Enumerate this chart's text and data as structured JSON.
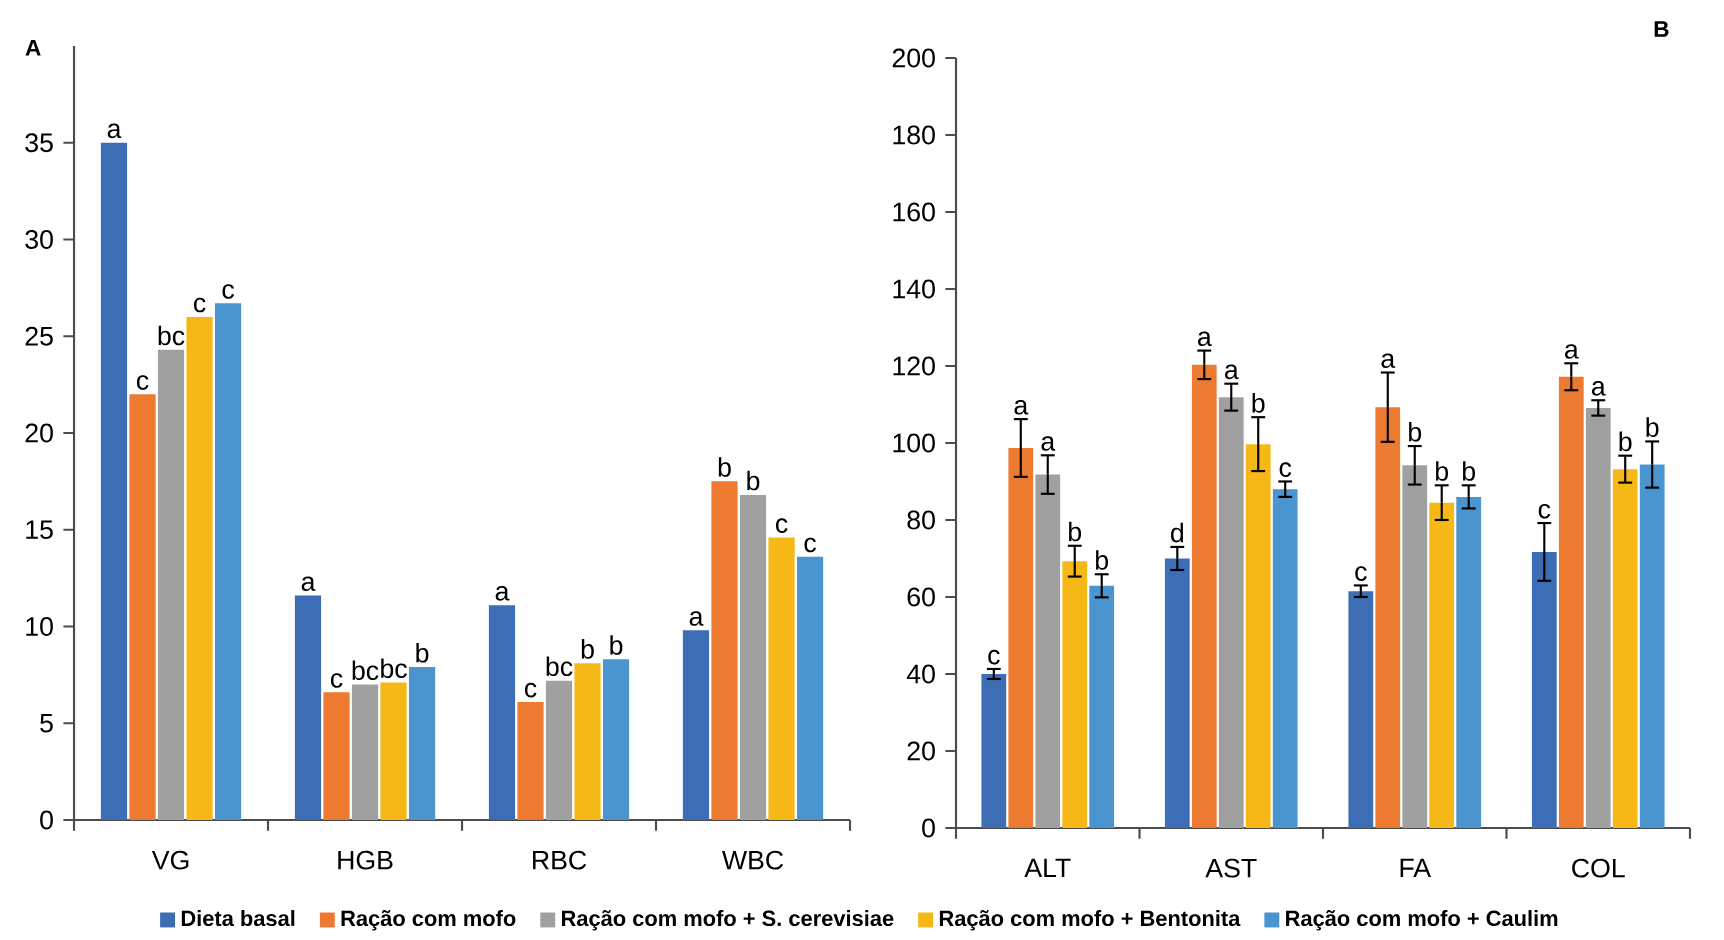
{
  "chart_data": [
    {
      "type": "bar",
      "annotations": [
        "A"
      ],
      "categories": [
        "VG",
        "HGB",
        "RBC",
        "WBC"
      ],
      "ylim": [
        0,
        40
      ],
      "yticks": [
        0,
        5,
        10,
        15,
        20,
        25,
        30,
        35
      ],
      "legend": "bottom",
      "series": [
        {
          "name": "Dieta basal",
          "color": "#3d6db5",
          "values": [
            35,
            11.6,
            11.1,
            9.8
          ],
          "value_labels": [
            "a",
            "a",
            "a",
            "a"
          ]
        },
        {
          "name": "Ração com mofo",
          "color": "#ec7a30",
          "values": [
            22,
            6.6,
            6.1,
            17.5
          ],
          "value_labels": [
            "c",
            "c",
            "c",
            "b"
          ]
        },
        {
          "name": "Ração com mofo + S. cerevisiae",
          "color": "#a0a0a0",
          "values": [
            24.3,
            7.0,
            7.2,
            16.8
          ],
          "value_labels": [
            "bc",
            "bc",
            "bc",
            "b"
          ]
        },
        {
          "name": "Ração com mofo + Bentonita",
          "color": "#f6b817",
          "values": [
            26,
            7.1,
            8.1,
            14.6
          ],
          "value_labels": [
            "c",
            "bc",
            "b",
            "c"
          ]
        },
        {
          "name": "Ração com mofo + Caulim",
          "color": "#4a95d0",
          "values": [
            26.7,
            7.9,
            8.3,
            13.6
          ],
          "value_labels": [
            "c",
            "b",
            "b",
            "c"
          ]
        }
      ]
    },
    {
      "type": "bar",
      "annotations": [
        "B"
      ],
      "categories": [
        "ALT",
        "AST",
        "FA",
        "COL"
      ],
      "ylim": [
        0,
        200
      ],
      "yticks": [
        0,
        20,
        40,
        60,
        80,
        100,
        120,
        140,
        160,
        180,
        200
      ],
      "series": [
        {
          "color": "#3d6db5",
          "values": [
            40,
            70,
            61.5,
            71.7
          ],
          "errors": [
            1.3,
            3,
            1.5,
            7.5
          ],
          "value_labels": [
            "c",
            "d",
            "c",
            "c"
          ]
        },
        {
          "color": "#ec7a30",
          "values": [
            98.7,
            120.3,
            109.3,
            117.2
          ],
          "errors": [
            7.5,
            3.7,
            9,
            3.5
          ],
          "value_labels": [
            "a",
            "a",
            "a",
            "a"
          ]
        },
        {
          "color": "#a0a0a0",
          "values": [
            91.8,
            111.9,
            94.2,
            109.1
          ],
          "errors": [
            5,
            3.5,
            5,
            2
          ],
          "value_labels": [
            "a",
            "a",
            "b",
            "a"
          ]
        },
        {
          "color": "#f6b817",
          "values": [
            69.3,
            99.7,
            84.5,
            93.2
          ],
          "errors": [
            4,
            7,
            4.5,
            3.5
          ],
          "value_labels": [
            "b",
            "b",
            "b",
            "b"
          ]
        },
        {
          "color": "#4a95d0",
          "values": [
            62.9,
            88,
            86,
            94.4
          ],
          "errors": [
            3,
            2,
            3,
            6
          ],
          "value_labels": [
            "b",
            "c",
            "b",
            "b"
          ]
        }
      ]
    }
  ]
}
